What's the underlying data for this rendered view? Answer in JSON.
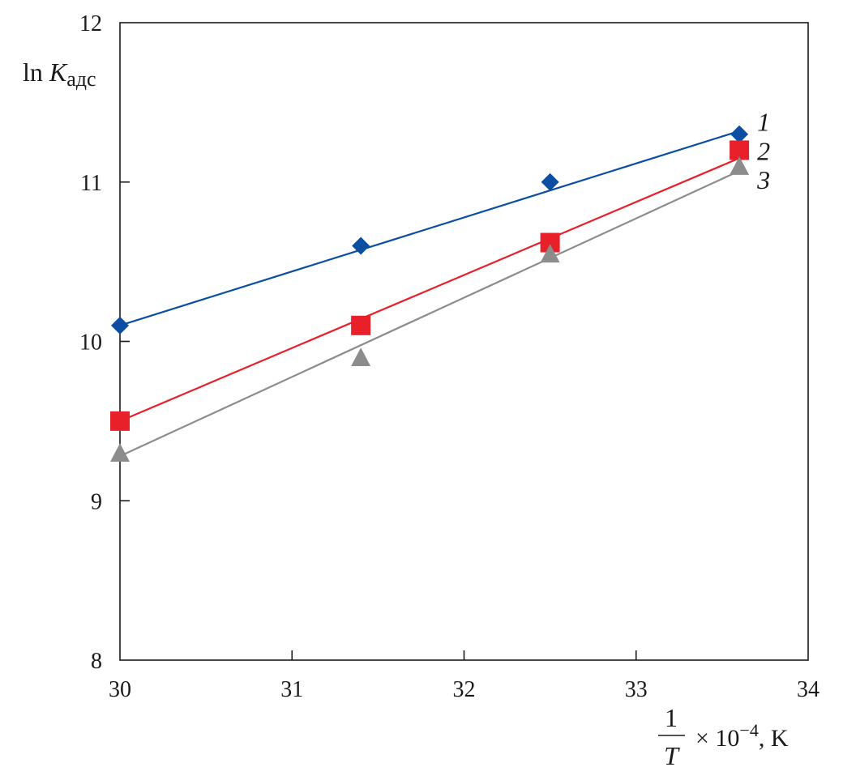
{
  "chart_data": {
    "type": "line",
    "xlim": [
      30,
      34
    ],
    "ylim": [
      8,
      12
    ],
    "x_ticks": [
      "30",
      "31",
      "32",
      "33",
      "34"
    ],
    "y_ticks": [
      "8",
      "9",
      "10",
      "11",
      "12"
    ],
    "ylabel": {
      "main": "ln ",
      "var": "K",
      "sub": "адс"
    },
    "xlabel": {
      "numerator": "1",
      "denominator": "T",
      "suffix": "× 10",
      "exponent": "−4",
      "unit": ", K"
    },
    "grid": false,
    "series": [
      {
        "name": "1",
        "color": "#0b4ea2",
        "marker": "diamond",
        "x": [
          30,
          31.4,
          32.5,
          33.6
        ],
        "y": [
          10.1,
          10.6,
          11.0,
          11.3
        ],
        "fit": [
          [
            30,
            10.1
          ],
          [
            33.6,
            11.32
          ]
        ]
      },
      {
        "name": "2",
        "color": "#e8202a",
        "marker": "square",
        "x": [
          30,
          31.4,
          32.5,
          33.6
        ],
        "y": [
          9.5,
          10.1,
          10.62,
          11.2
        ],
        "fit": [
          [
            30,
            9.5
          ],
          [
            33.6,
            11.15
          ]
        ]
      },
      {
        "name": "3",
        "color": "#8c8c8c",
        "marker": "triangle",
        "x": [
          30,
          31.4,
          32.5,
          33.6
        ],
        "y": [
          9.3,
          9.9,
          10.55,
          11.1
        ],
        "fit": [
          [
            30,
            9.28
          ],
          [
            33.6,
            11.07
          ]
        ]
      }
    ]
  }
}
